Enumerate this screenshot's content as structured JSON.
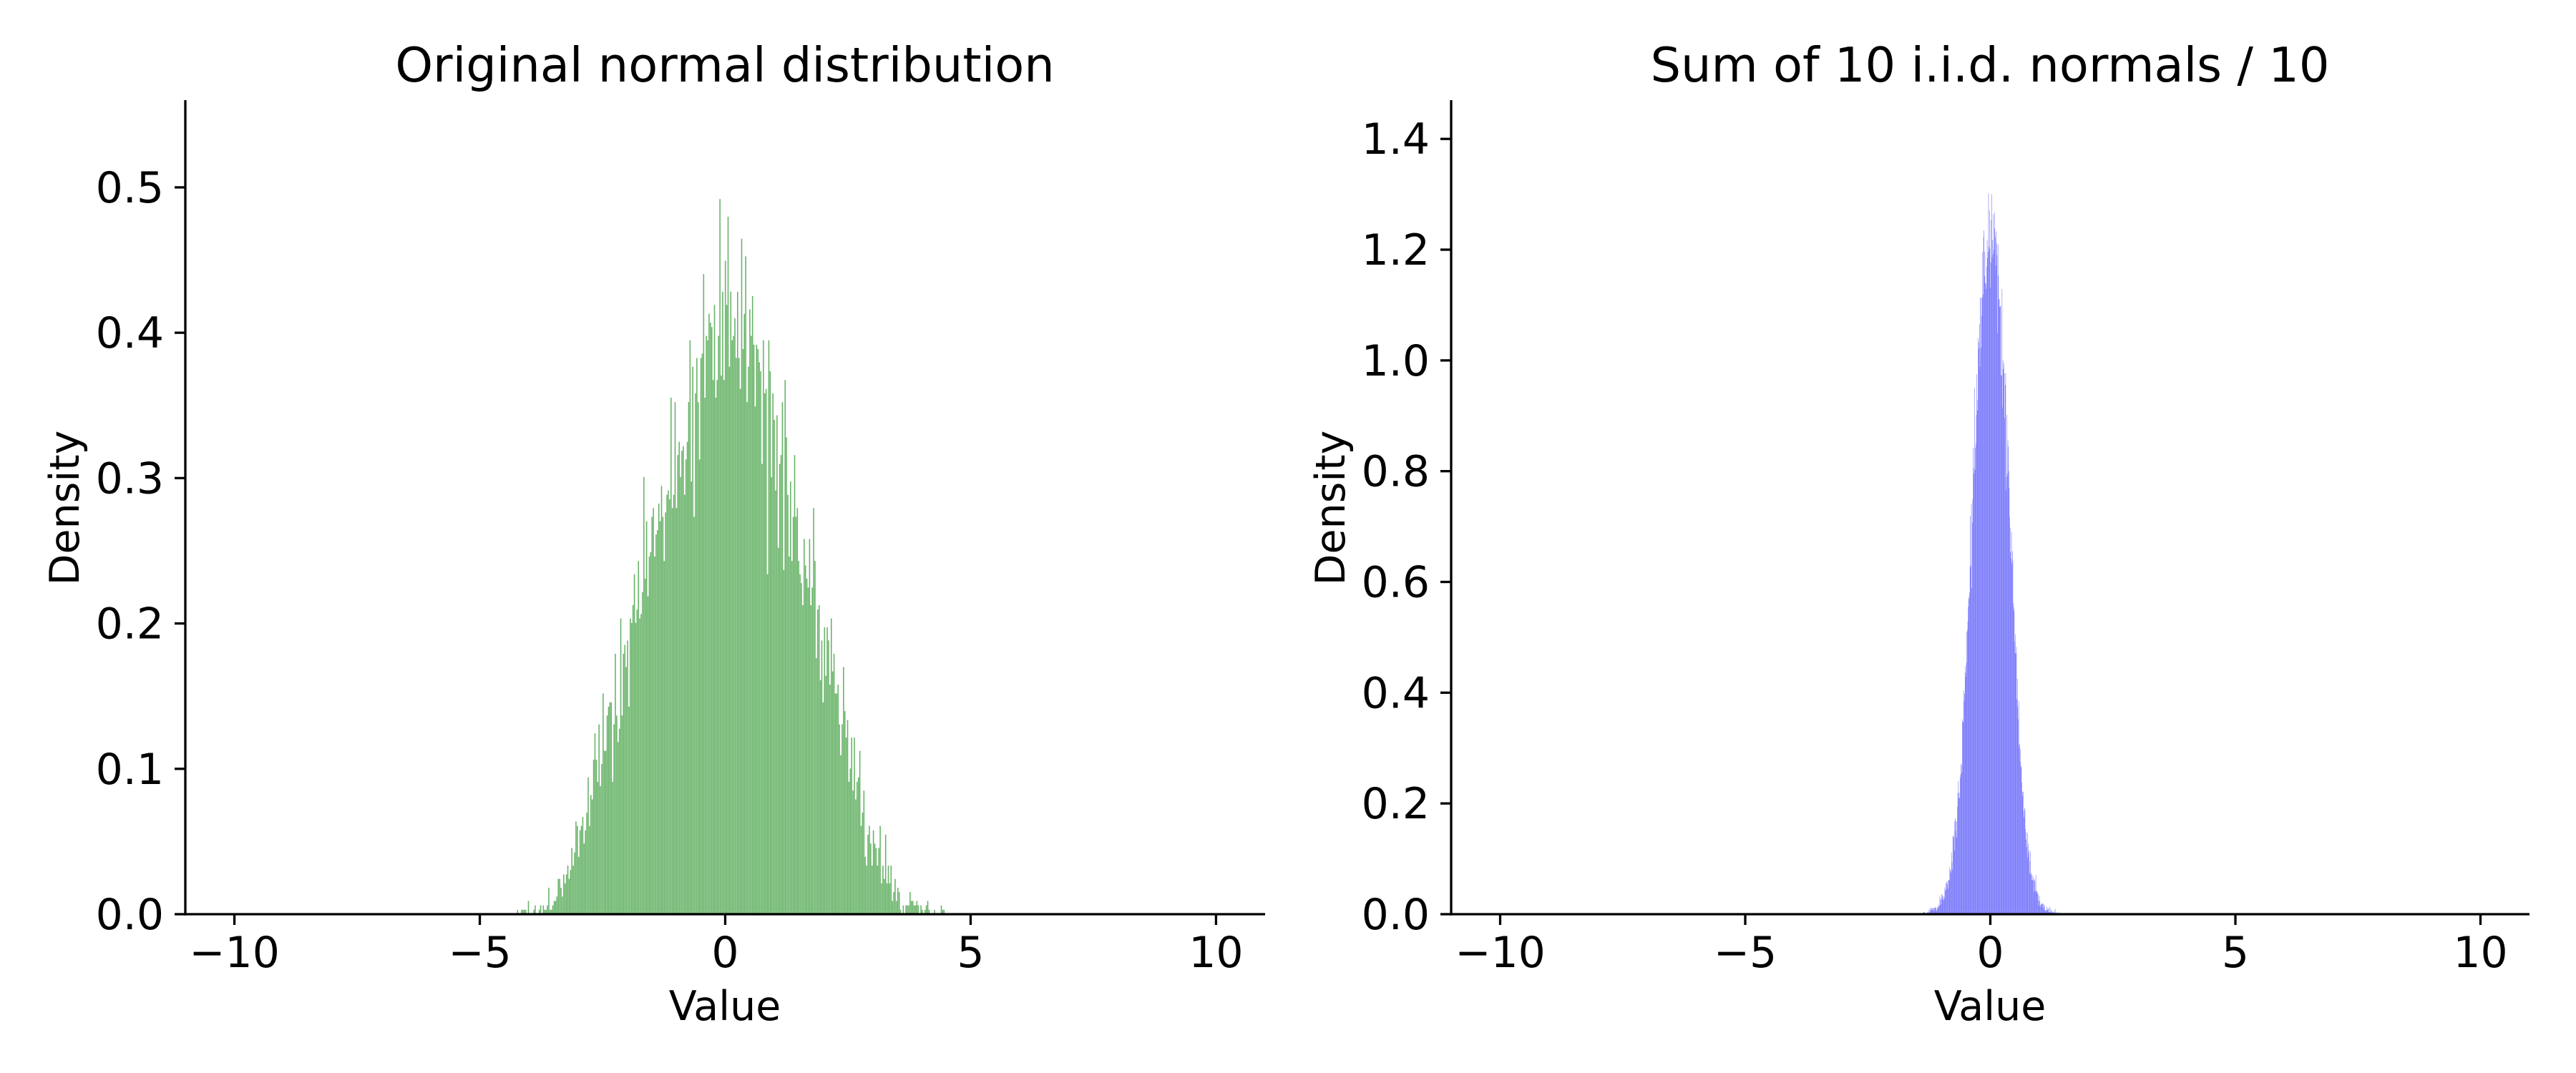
{
  "figure": {
    "background": "#ffffff",
    "text_color": "#000000"
  },
  "chart_data": [
    {
      "type": "histogram",
      "title": "Original normal distribution",
      "xlabel": "Value",
      "ylabel": "Density",
      "bar_color": "#66b266",
      "axis_color": "#000000",
      "grid": false,
      "legend_position": "none",
      "xlim": [
        -11,
        11
      ],
      "ylim": [
        0,
        0.56
      ],
      "xtick_labels": [
        "−10",
        "−5",
        "0",
        "5",
        "10"
      ],
      "xtick_values": [
        -10,
        -5,
        0,
        5,
        10
      ],
      "ytick_labels": [
        "0.0",
        "0.1",
        "0.2",
        "0.3",
        "0.4",
        "0.5"
      ],
      "ytick_values": [
        0,
        0.1,
        0.2,
        0.3,
        0.4,
        0.5
      ],
      "distribution": {
        "mean": 0,
        "peak_density": 0.41,
        "max_spike_density": 0.51,
        "support": [
          -4.3,
          4.5
        ]
      },
      "envelope_x": [
        -4.3,
        -3.9,
        -3.6,
        -3.3,
        -3.0,
        -2.7,
        -2.4,
        -2.1,
        -1.8,
        -1.5,
        -1.2,
        -0.9,
        -0.6,
        -0.3,
        0,
        0.3,
        0.6,
        0.9,
        1.2,
        1.5,
        1.8,
        2.1,
        2.4,
        2.7,
        3.0,
        3.3,
        3.6,
        3.9,
        4.2,
        4.5
      ],
      "envelope_density": [
        0.001,
        0.004,
        0.008,
        0.02,
        0.05,
        0.09,
        0.13,
        0.17,
        0.21,
        0.25,
        0.29,
        0.33,
        0.37,
        0.4,
        0.41,
        0.4,
        0.375,
        0.34,
        0.3,
        0.26,
        0.22,
        0.17,
        0.13,
        0.085,
        0.05,
        0.025,
        0.012,
        0.005,
        0.002,
        0.001
      ],
      "render": {
        "bins": 318,
        "peak_bin_count": 135,
        "seed": 1337
      }
    },
    {
      "type": "histogram",
      "title": "Sum of 10 i.i.d. normals / 10",
      "xlabel": "Value",
      "ylabel": "Density",
      "bar_color": "#6666fa",
      "axis_color": "#000000",
      "grid": false,
      "legend_position": "none",
      "xlim": [
        -11,
        11
      ],
      "ylim": [
        0,
        1.47
      ],
      "xtick_labels": [
        "−10",
        "−5",
        "0",
        "5",
        "10"
      ],
      "xtick_values": [
        -10,
        -5,
        0,
        5,
        10
      ],
      "ytick_labels": [
        "0.0",
        "0.2",
        "0.4",
        "0.6",
        "0.8",
        "1.0",
        "1.2",
        "1.4"
      ],
      "ytick_values": [
        0,
        0.2,
        0.4,
        0.6,
        0.8,
        1.0,
        1.2,
        1.4
      ],
      "distribution": {
        "mean": 0,
        "peak_density": 1.25,
        "max_spike_density": 1.36,
        "support": [
          -1.42,
          1.42
        ]
      },
      "envelope_x": [
        -1.42,
        -1.3,
        -1.2,
        -1.1,
        -1.0,
        -0.9,
        -0.8,
        -0.7,
        -0.6,
        -0.5,
        -0.4,
        -0.3,
        -0.2,
        -0.1,
        0,
        0.1,
        0.2,
        0.3,
        0.4,
        0.5,
        0.6,
        0.7,
        0.8,
        0.9,
        1.0,
        1.1,
        1.2,
        1.3,
        1.42
      ],
      "envelope_density": [
        0.001,
        0.003,
        0.006,
        0.012,
        0.025,
        0.05,
        0.09,
        0.16,
        0.27,
        0.44,
        0.66,
        0.88,
        1.07,
        1.19,
        1.25,
        1.2,
        1.08,
        0.92,
        0.72,
        0.5,
        0.3,
        0.17,
        0.09,
        0.05,
        0.025,
        0.012,
        0.006,
        0.003,
        0.001
      ],
      "render": {
        "bins": 309,
        "peak_bin_count": 650,
        "seed": 4242
      }
    }
  ]
}
